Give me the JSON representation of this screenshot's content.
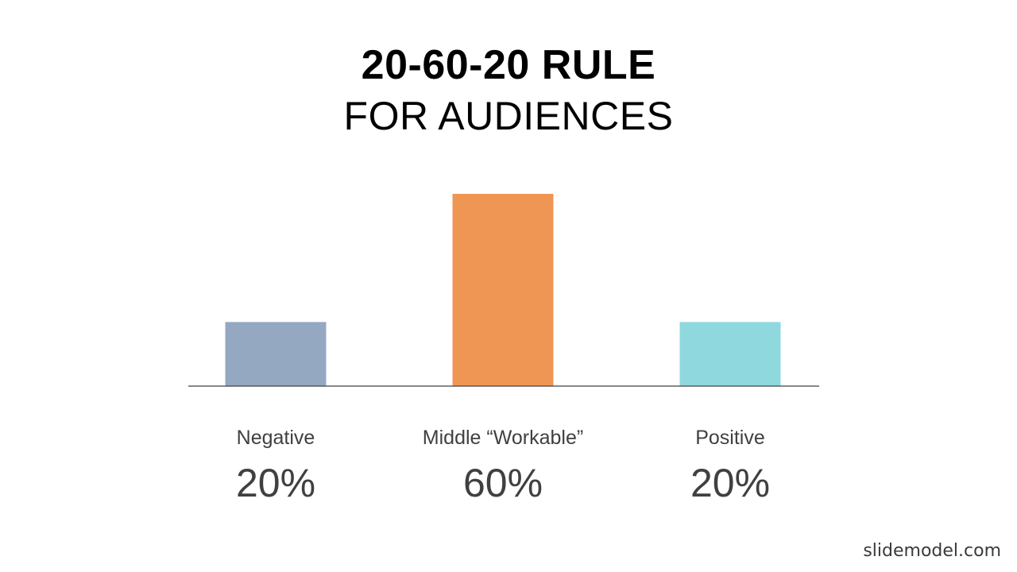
{
  "slide": {
    "title": "20-60-20 RULE",
    "subtitle": "FOR AUDIENCES",
    "watermark": "slidemodel.com"
  },
  "chart_data": {
    "type": "bar",
    "title": "20-60-20 RULE",
    "subtitle": "FOR AUDIENCES",
    "categories": [
      "Negative",
      "Middle “Workable”",
      "Positive"
    ],
    "values": [
      20,
      60,
      20
    ],
    "value_labels": [
      "20%",
      "60%",
      "20%"
    ],
    "colors": [
      "#95a8c2",
      "#f09654",
      "#8fd8de"
    ],
    "axis_color": "#404040",
    "xlabel": "",
    "ylabel": "",
    "ylim": [
      0,
      60
    ],
    "grid": false,
    "legend": "none"
  }
}
